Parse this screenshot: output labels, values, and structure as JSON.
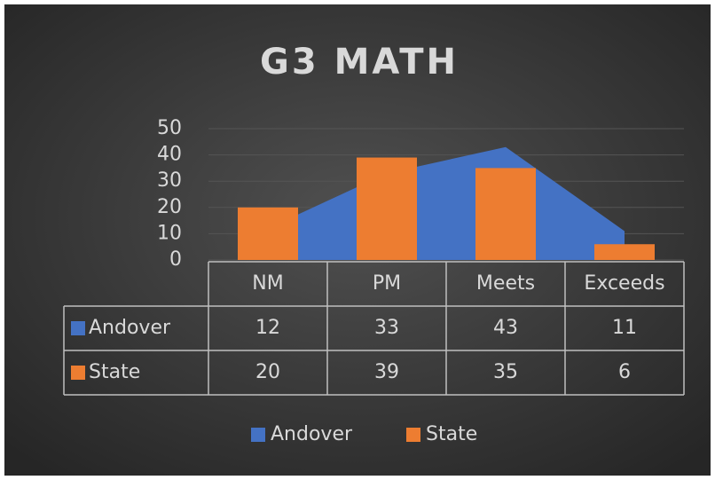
{
  "chart_data": {
    "type": "combo",
    "title": "G3 MATH",
    "categories": [
      "NM",
      "PM",
      "Meets",
      "Exceeds"
    ],
    "series": [
      {
        "name": "Andover",
        "type": "area",
        "color": "#4472c4",
        "values": [
          12,
          33,
          43,
          11
        ]
      },
      {
        "name": "State",
        "type": "bar",
        "color": "#ed7d31",
        "values": [
          20,
          39,
          35,
          6
        ]
      }
    ],
    "ylim": [
      0,
      50
    ],
    "yticks": [
      0,
      10,
      20,
      30,
      40,
      50
    ],
    "grid": true,
    "legend": "bottom",
    "data_table": true
  }
}
